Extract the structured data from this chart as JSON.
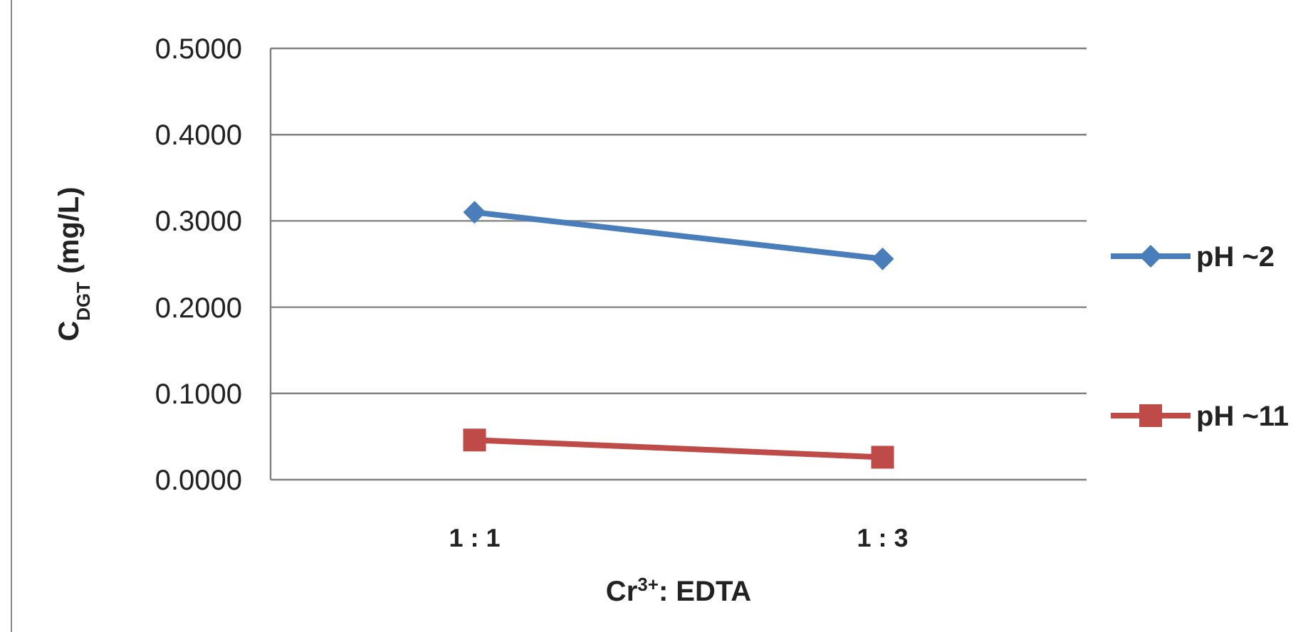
{
  "chart_data": {
    "type": "line",
    "xlabel": "Cr$^{3+}$: EDTA",
    "ylabel": "C$_{DGT}$ (mg/L)",
    "categories": [
      "1 : 1",
      "1 : 3"
    ],
    "series": [
      {
        "name": "pH ~2",
        "color": "#4a7ebb",
        "values": [
          0.31,
          0.256
        ],
        "marker": "diamond"
      },
      {
        "name": "pH ~11",
        "color": "#be4b48",
        "values": [
          0.046,
          0.026
        ],
        "marker": "square"
      }
    ],
    "ylim": [
      0,
      0.5
    ],
    "yticks": [
      {
        "value": 0,
        "label": "0.0000"
      },
      {
        "value": 0.1,
        "label": "0.1000"
      },
      {
        "value": 0.2,
        "label": "0.2000"
      },
      {
        "value": 0.3,
        "label": "0.3000"
      },
      {
        "value": 0.4,
        "label": "0.4000"
      },
      {
        "value": 0.5,
        "label": "0.5000"
      }
    ],
    "grid": "y",
    "legend": "right"
  }
}
